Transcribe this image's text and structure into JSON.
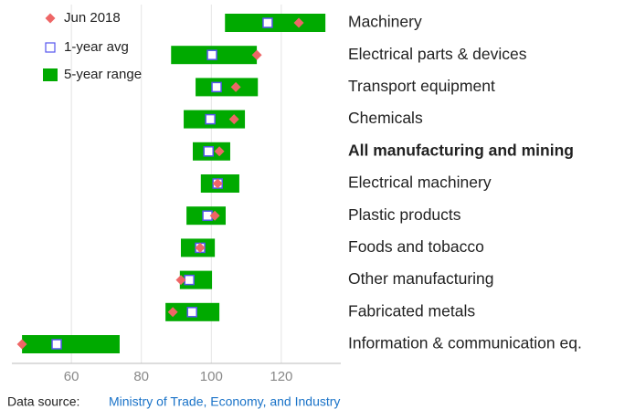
{
  "chart_data": {
    "type": "range",
    "categories": [
      "Machinery",
      "Electrical parts & devices",
      "Transport equipment",
      "Chemicals",
      "All manufacturing and mining",
      "Electrical machinery",
      "Plastic products",
      "Foods and tobacco",
      "Other manufacturing",
      "Fabricated metals",
      "Information & communication eq."
    ],
    "highlight_index": 4,
    "series": [
      {
        "name": "5-year range",
        "color": "#00aa00",
        "low": [
          103.9,
          88.5,
          95.5,
          92.1,
          94.7,
          97,
          92.9,
          91.3,
          91,
          86.9,
          45.9
        ],
        "high": [
          132.6,
          113,
          113.3,
          109.6,
          105.4,
          108,
          104.1,
          101,
          100.2,
          102.3,
          73.8
        ]
      },
      {
        "name": "1-year avg",
        "color": "#5555ee",
        "values": [
          116.1,
          100.2,
          101.5,
          99.7,
          99.2,
          101.8,
          98.9,
          96.8,
          93.7,
          94.5,
          55.8
        ]
      },
      {
        "name": "Jun 2018",
        "color": "#ee6666",
        "values": [
          125,
          113,
          107,
          106.5,
          102.3,
          101.8,
          101,
          96.8,
          91.3,
          89,
          45.9
        ]
      }
    ],
    "xlim": [
      43,
      137
    ],
    "xticks": [
      60,
      80,
      100,
      120
    ],
    "grid": true,
    "legend": "upper left",
    "source_label": "Data source:",
    "source_link": "Ministry of Trade, Economy, and Industry"
  }
}
